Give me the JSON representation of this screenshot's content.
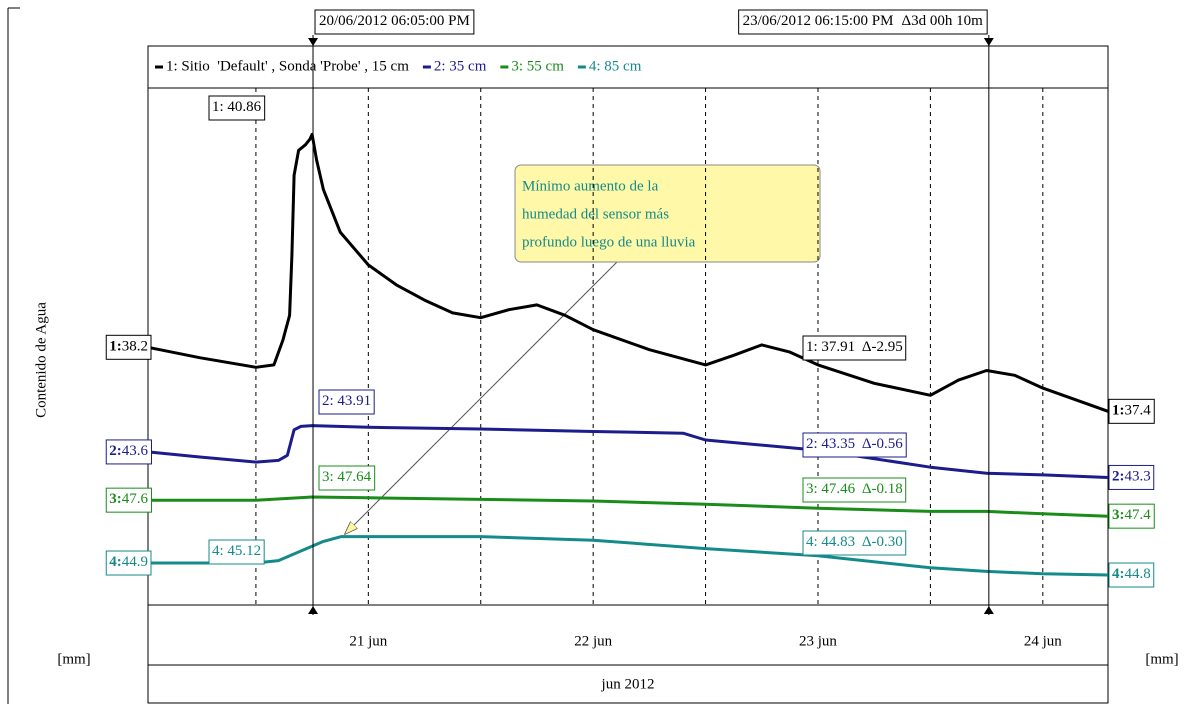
{
  "chart_data": {
    "type": "line",
    "y_label": "Contenido de Agua",
    "unit_left": "[mm]",
    "unit_right": "[mm]",
    "x_label": "jun 2012",
    "xlim": [
      20.02,
      24.29
    ],
    "xticks": [
      {
        "value": 21,
        "label": "21 jun"
      },
      {
        "value": 22,
        "label": "22 jun"
      },
      {
        "value": 23,
        "label": "23 jun"
      },
      {
        "value": 24,
        "label": "24 jun"
      }
    ],
    "minor_xticks": [
      20.5,
      21.5,
      22.5,
      23.5
    ],
    "series": [
      {
        "name": "1: Sitio  'Default' , Sonda 'Probe' , 15 cm",
        "color": "#000000",
        "ylim": [
          34.98,
          41.44
        ],
        "x": [
          20.02,
          20.25,
          20.5,
          20.58,
          20.62,
          20.65,
          20.66,
          20.67,
          20.69,
          20.72,
          20.74,
          20.75,
          20.77,
          20.8,
          20.875,
          21,
          21.125,
          21.25,
          21.375,
          21.5,
          21.625,
          21.75,
          21.875,
          22,
          22.25,
          22.5,
          22.625,
          22.75,
          22.875,
          23,
          23.25,
          23.5,
          23.625,
          23.75,
          23.875,
          24,
          24.29
        ],
        "values": [
          38.2,
          38.07,
          37.95,
          37.98,
          38.29,
          38.6,
          39.35,
          40.35,
          40.66,
          40.73,
          40.8,
          40.86,
          40.54,
          40.17,
          39.64,
          39.23,
          38.98,
          38.79,
          38.63,
          38.57,
          38.67,
          38.73,
          38.6,
          38.42,
          38.17,
          37.98,
          38.1,
          38.23,
          38.14,
          37.98,
          37.75,
          37.6,
          37.79,
          37.91,
          37.85,
          37.69,
          37.4
        ],
        "start_label": {
          "index": "1:",
          "value": "38.2"
        },
        "end_label": {
          "index": "1:",
          "value": "37.4"
        }
      },
      {
        "name": "2: 35 cm",
        "color": "#1c1c8c",
        "ylim": [
          41.8,
          47.88
        ],
        "x": [
          20.02,
          20.25,
          20.5,
          20.6,
          20.64,
          20.67,
          20.7,
          20.75,
          21,
          21.5,
          22,
          22.4,
          22.5,
          23,
          23.5,
          23.75,
          24,
          24.29
        ],
        "values": [
          43.6,
          43.54,
          43.48,
          43.5,
          43.56,
          43.86,
          43.9,
          43.91,
          43.89,
          43.87,
          43.84,
          43.82,
          43.74,
          43.62,
          43.42,
          43.35,
          43.33,
          43.3
        ],
        "start_label": {
          "index": "2:",
          "value": "43.6"
        },
        "end_label": {
          "index": "2:",
          "value": "43.3"
        }
      },
      {
        "name": "3: 55 cm",
        "color": "#1a8c1a",
        "ylim": [
          46.29,
          52.75
        ],
        "x": [
          20.02,
          20.5,
          20.75,
          21,
          21.5,
          22,
          22.5,
          23,
          23.5,
          23.75,
          24,
          24.29
        ],
        "values": [
          47.6,
          47.6,
          47.64,
          47.63,
          47.61,
          47.59,
          47.55,
          47.5,
          47.46,
          47.46,
          47.43,
          47.4
        ],
        "start_label": {
          "index": "3:",
          "value": "47.6"
        },
        "end_label": {
          "index": "3:",
          "value": "47.4"
        }
      },
      {
        "name": "4: 85 cm",
        "color": "#148a8a",
        "ylim": [
          44.55,
          48.86
        ],
        "x": [
          20.02,
          20.25,
          20.5,
          20.6,
          20.7,
          20.8,
          20.88,
          21,
          21.5,
          22,
          22.5,
          23,
          23.5,
          23.75,
          24,
          24.29
        ],
        "values": [
          44.9,
          44.9,
          44.9,
          44.92,
          45.0,
          45.08,
          45.12,
          45.12,
          45.12,
          45.09,
          45.02,
          44.96,
          44.86,
          44.83,
          44.81,
          44.8
        ],
        "start_label": {
          "index": "4:",
          "value": "44.9"
        },
        "end_label": {
          "index": "4:",
          "value": "44.8"
        }
      }
    ],
    "cursors": [
      {
        "x": 20.754,
        "time": "20/06/2012 06:05:00 PM",
        "labels": [
          "1: 40.86",
          "2: 43.91",
          "3: 47.64",
          "4: 45.12"
        ]
      },
      {
        "x": 23.76,
        "time": "23/06/2012 06:15:00 PM",
        "delta": "Δ3d 00h 10m",
        "labels": [
          "1: 37.91  Δ-2.95",
          "2: 43.35  Δ-0.56",
          "3: 47.46  Δ-0.18",
          "4: 44.83  Δ-0.30"
        ]
      }
    ],
    "annotation": [
      "Mínimo aumento de la",
      "humedad del sensor más",
      "profundo luego de una lluvia"
    ]
  }
}
